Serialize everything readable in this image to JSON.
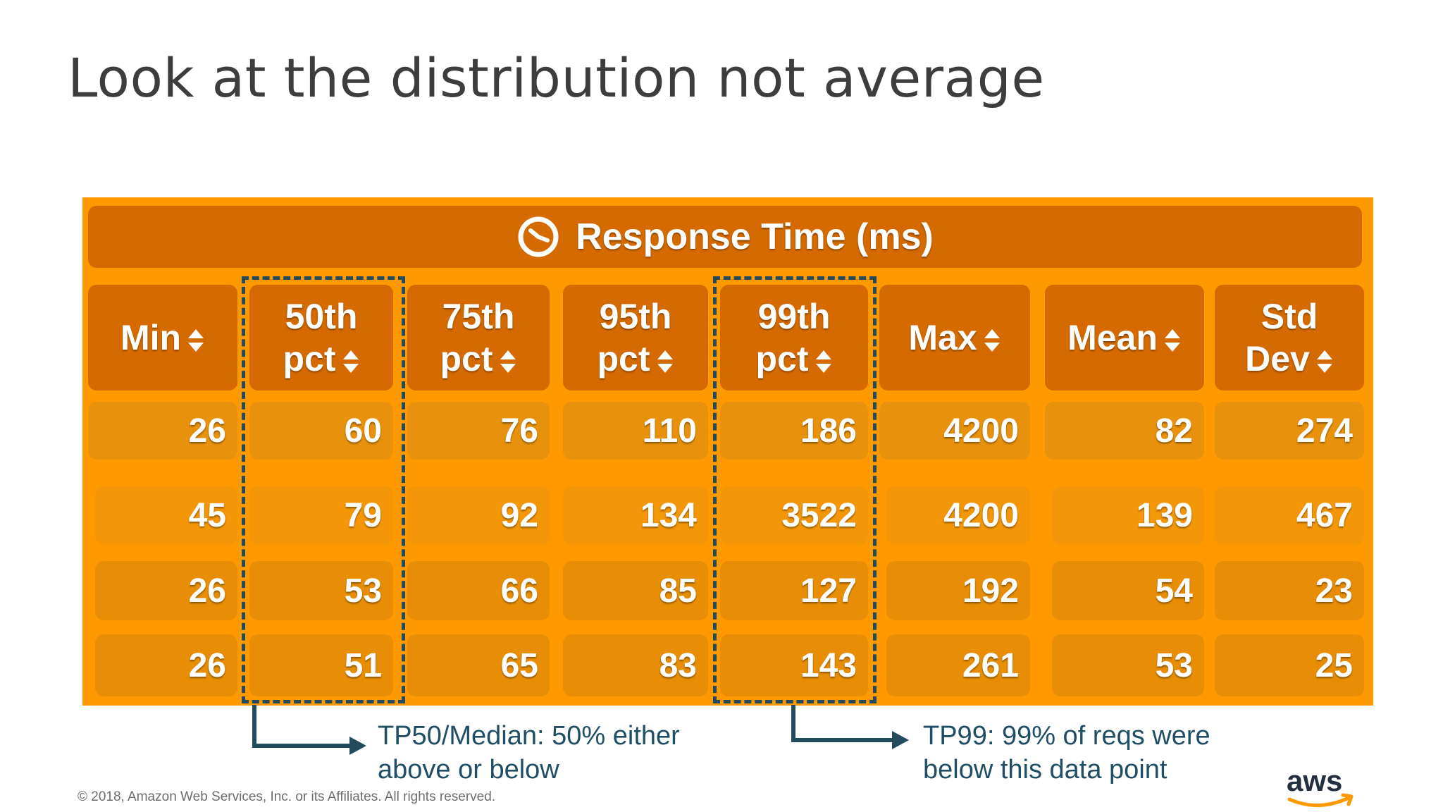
{
  "slide": {
    "title": "Look at the distribution not average"
  },
  "table": {
    "title": "Response Time (ms)",
    "columns": [
      {
        "line1": "Min",
        "line2": ""
      },
      {
        "line1": "50th",
        "line2": "pct"
      },
      {
        "line1": "75th",
        "line2": "pct"
      },
      {
        "line1": "95th",
        "line2": "pct"
      },
      {
        "line1": "99th",
        "line2": "pct"
      },
      {
        "line1": "Max",
        "line2": ""
      },
      {
        "line1": "Mean",
        "line2": ""
      },
      {
        "line1": "Std",
        "line2": "Dev"
      }
    ],
    "rows": [
      [
        "26",
        "60",
        "76",
        "110",
        "186",
        "4200",
        "82",
        "274"
      ],
      [
        "45",
        "79",
        "92",
        "134",
        "3522",
        "4200",
        "139",
        "467"
      ],
      [
        "26",
        "53",
        "66",
        "85",
        "127",
        "192",
        "54",
        "23"
      ],
      [
        "26",
        "51",
        "65",
        "83",
        "143",
        "261",
        "53",
        "25"
      ]
    ]
  },
  "annotations": {
    "tp50": {
      "line1": "TP50/Median: 50% either",
      "line2": "above or below"
    },
    "tp99": {
      "line1": "TP99: 99% of reqs were",
      "line2": "below this data point"
    }
  },
  "footer": {
    "copyright": "© 2018, Amazon Web Services, Inc. or its Affiliates. All rights reserved.",
    "logo_text": "aws"
  },
  "colors": {
    "panel": "#fe9a00",
    "header": "#d46a00",
    "highlight_border": "#244a5d",
    "annotation_text": "#1f4e66"
  }
}
